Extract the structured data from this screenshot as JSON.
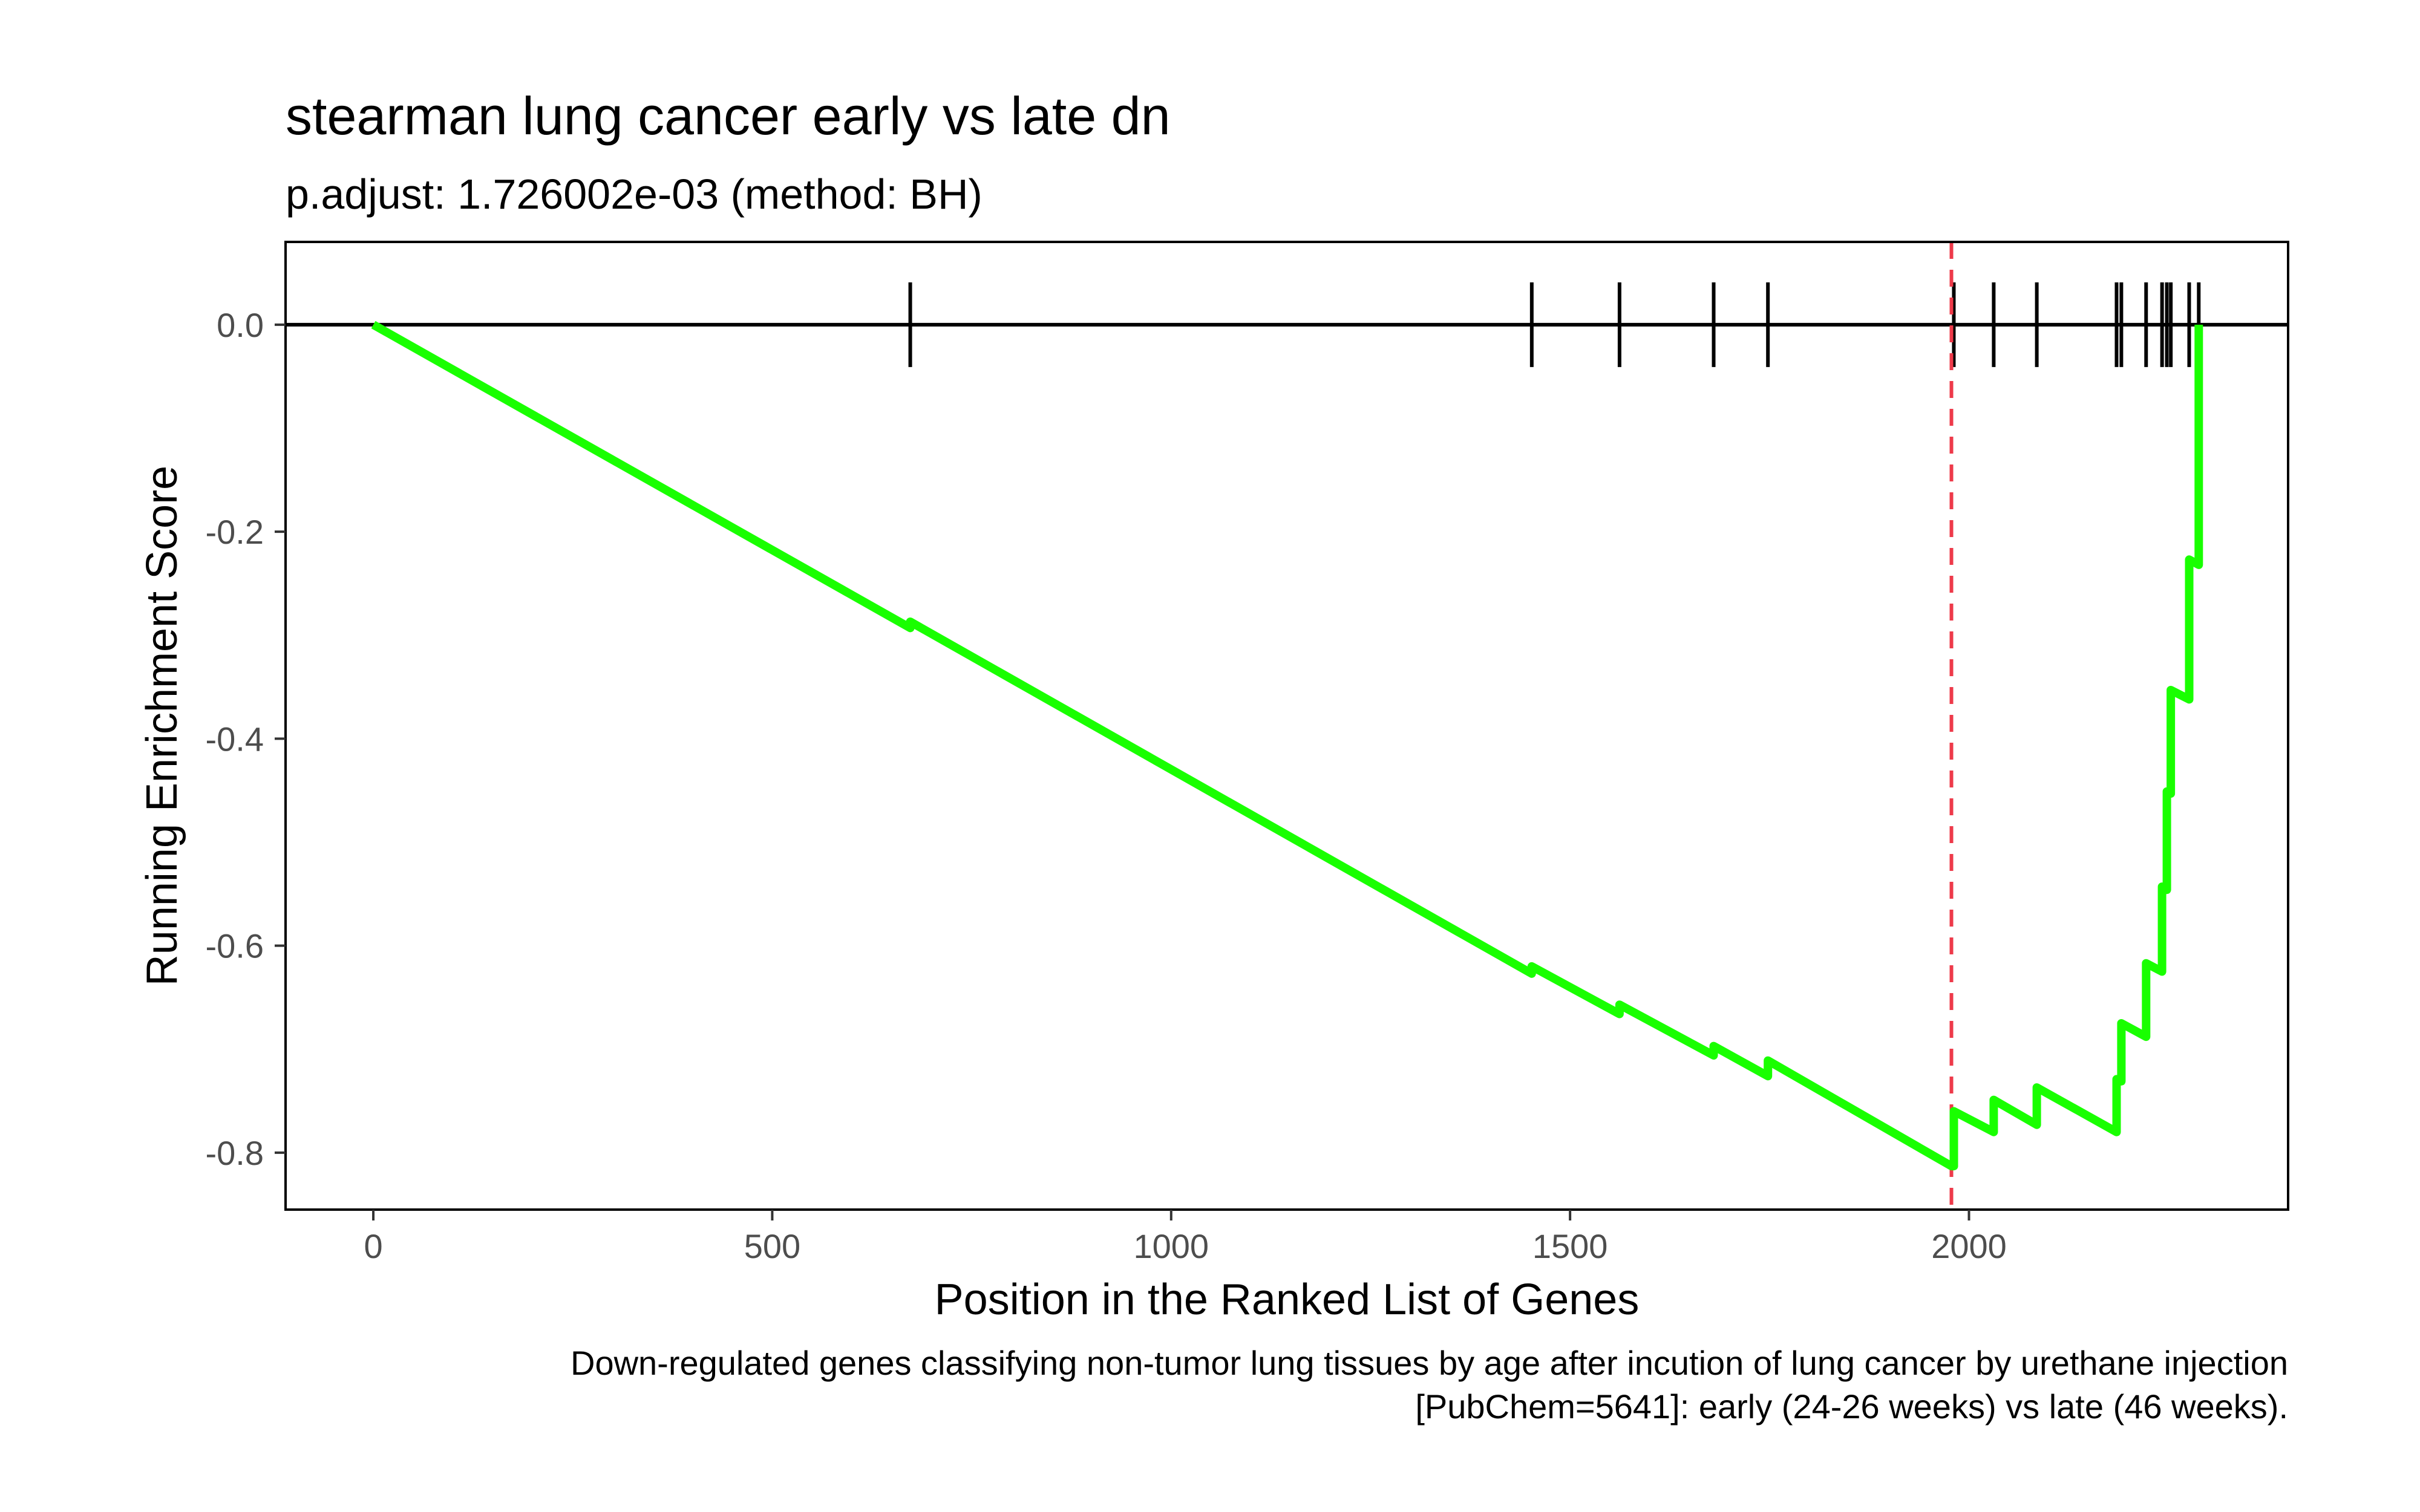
{
  "chart_data": {
    "type": "line",
    "title": "stearman lung cancer early vs late dn",
    "subtitle": "p.adjust: 1.726002e-03 (method: BH)",
    "xlabel": "Position in the Ranked List of Genes",
    "ylabel": "Running Enrichment Score",
    "caption_lines": [
      "Down-regulated genes classifying non-tumor lung tissues by age after incution of lung cancer by urethane injection",
      "[PubChem=5641]: early (24-26 weeks) vs late (46 weeks)."
    ],
    "xlim": [
      -110,
      2400
    ],
    "ylim": [
      -0.855,
      0.08
    ],
    "x_ticks": [
      0,
      500,
      1000,
      1500,
      2000
    ],
    "x_tick_labels": [
      "0",
      "500",
      "1000",
      "1500",
      "2000"
    ],
    "y_ticks": [
      0.0,
      -0.2,
      -0.4,
      -0.6,
      -0.8
    ],
    "y_tick_labels": [
      "0.0",
      "-0.2",
      "-0.4",
      "-0.6",
      "-0.8"
    ],
    "grid": false,
    "hit_positions": [
      673,
      1452,
      1562,
      1680,
      1748,
      1981,
      2031,
      2085,
      2185,
      2191,
      2222,
      2242,
      2248,
      2253,
      2276,
      2288
    ],
    "peak_position": 1978,
    "series": [
      {
        "color": "#19ff00",
        "points": [
          [
            0,
            0.0
          ],
          [
            673,
            -0.293
          ],
          [
            673,
            -0.287
          ],
          [
            1452,
            -0.627
          ],
          [
            1452,
            -0.62
          ],
          [
            1562,
            -0.666
          ],
          [
            1562,
            -0.657
          ],
          [
            1680,
            -0.706
          ],
          [
            1680,
            -0.697
          ],
          [
            1748,
            -0.726
          ],
          [
            1748,
            -0.711
          ],
          [
            1978,
            -0.813
          ],
          [
            1981,
            -0.813
          ],
          [
            1981,
            -0.76
          ],
          [
            2031,
            -0.78
          ],
          [
            2031,
            -0.749
          ],
          [
            2085,
            -0.773
          ],
          [
            2085,
            -0.737
          ],
          [
            2185,
            -0.78
          ],
          [
            2185,
            -0.729
          ],
          [
            2191,
            -0.731
          ],
          [
            2191,
            -0.675
          ],
          [
            2222,
            -0.688
          ],
          [
            2222,
            -0.617
          ],
          [
            2242,
            -0.625
          ],
          [
            2242,
            -0.543
          ],
          [
            2248,
            -0.546
          ],
          [
            2248,
            -0.451
          ],
          [
            2253,
            -0.453
          ],
          [
            2253,
            -0.353
          ],
          [
            2276,
            -0.362
          ],
          [
            2276,
            -0.227
          ],
          [
            2288,
            -0.232
          ],
          [
            2288,
            0.0
          ]
        ]
      }
    ],
    "colors": {
      "series": "#19ff00",
      "peak_line": "#ee3a4a",
      "axis": "#000000",
      "tick_text": "#4d4d4d"
    }
  }
}
